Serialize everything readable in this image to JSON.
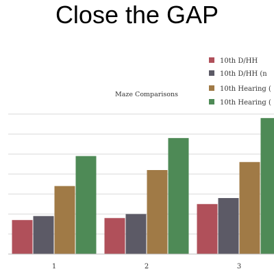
{
  "slide": {
    "title": "Close the GAP"
  },
  "chart_data": {
    "type": "bar",
    "title": "Maze Comparisons",
    "categories": [
      "1",
      "2",
      "3"
    ],
    "series": [
      {
        "name": "10th D/HH",
        "color": "#b0505a",
        "values": [
          1.7,
          1.8,
          2.5
        ]
      },
      {
        "name": "10th D/HH (n",
        "color": "#5c5a66",
        "values": [
          1.9,
          2.0,
          2.8
        ]
      },
      {
        "name": "10th Hearing (",
        "color": "#a07a46",
        "values": [
          3.4,
          4.2,
          4.6
        ]
      },
      {
        "name": "10th Hearing (",
        "color": "#4e8a56",
        "values": [
          4.9,
          5.8,
          6.8
        ]
      }
    ],
    "ylim": [
      0,
      7
    ],
    "grid": true,
    "legend_position": "top-right",
    "xlabel": "",
    "ylabel": ""
  }
}
